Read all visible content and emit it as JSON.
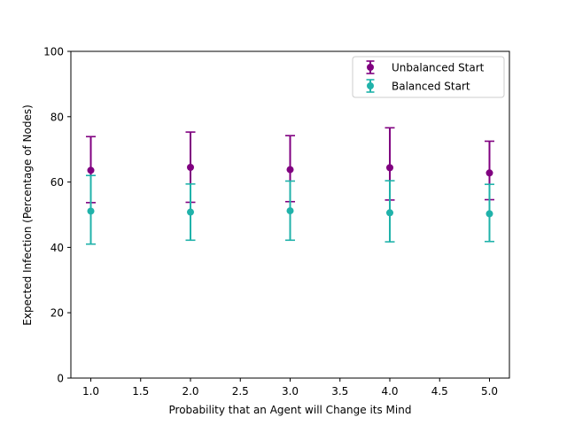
{
  "chart_data": {
    "type": "scatter",
    "title": "",
    "xlabel": "Probability that an Agent will Change its Mind",
    "ylabel": "Expected Infection (Percentage of Nodes)",
    "xlim": [
      0.8,
      5.2
    ],
    "ylim": [
      0,
      100
    ],
    "x_ticks": [
      1.0,
      1.5,
      2.0,
      2.5,
      3.0,
      3.5,
      4.0,
      4.5,
      5.0
    ],
    "x_tick_labels": [
      "1.0",
      "1.5",
      "2.0",
      "2.5",
      "3.0",
      "3.5",
      "4.0",
      "4.5",
      "5.0"
    ],
    "y_ticks": [
      0,
      20,
      40,
      60,
      80,
      100
    ],
    "y_tick_labels": [
      "0",
      "20",
      "40",
      "60",
      "80",
      "100"
    ],
    "grid": false,
    "legend_position": "top-right",
    "series": [
      {
        "name": "Unbalanced Start",
        "color": "#800080",
        "marker": "circle",
        "error_bars": true,
        "x": [
          1.0,
          2.0,
          3.0,
          4.0,
          5.0
        ],
        "y": [
          63.6,
          64.5,
          63.8,
          64.4,
          62.8
        ],
        "y_lower": [
          53.7,
          53.8,
          54.0,
          54.5,
          54.6
        ],
        "y_upper": [
          73.9,
          75.3,
          74.2,
          76.6,
          72.5
        ]
      },
      {
        "name": "Balanced Start",
        "color": "#20B2AA",
        "marker": "circle",
        "error_bars": true,
        "x": [
          1.0,
          2.0,
          3.0,
          4.0,
          5.0
        ],
        "y": [
          51.1,
          50.8,
          51.2,
          50.6,
          50.3
        ],
        "y_lower": [
          41.0,
          42.2,
          42.2,
          41.7,
          41.8
        ],
        "y_upper": [
          62.0,
          59.4,
          60.3,
          60.4,
          59.3
        ]
      }
    ]
  }
}
